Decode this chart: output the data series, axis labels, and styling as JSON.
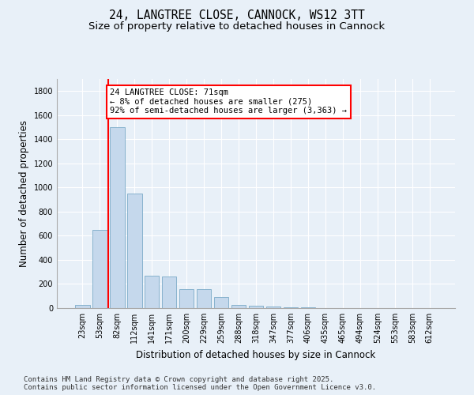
{
  "title1": "24, LANGTREE CLOSE, CANNOCK, WS12 3TT",
  "title2": "Size of property relative to detached houses in Cannock",
  "xlabel": "Distribution of detached houses by size in Cannock",
  "ylabel": "Number of detached properties",
  "categories": [
    "23sqm",
    "53sqm",
    "82sqm",
    "112sqm",
    "141sqm",
    "171sqm",
    "200sqm",
    "229sqm",
    "259sqm",
    "288sqm",
    "318sqm",
    "347sqm",
    "377sqm",
    "406sqm",
    "435sqm",
    "465sqm",
    "494sqm",
    "524sqm",
    "553sqm",
    "583sqm",
    "612sqm"
  ],
  "values": [
    25,
    650,
    1500,
    950,
    270,
    260,
    160,
    155,
    95,
    28,
    22,
    12,
    8,
    5,
    3,
    2,
    1,
    1,
    0,
    0,
    0
  ],
  "bar_color": "#c5d8ec",
  "bar_edge_color": "#7aaac8",
  "vline_x_index": 1.5,
  "annotation_text": "24 LANGTREE CLOSE: 71sqm\n← 8% of detached houses are smaller (275)\n92% of semi-detached houses are larger (3,363) →",
  "annotation_box_color": "white",
  "annotation_box_edge_color": "red",
  "vline_color": "red",
  "ylim": [
    0,
    1900
  ],
  "yticks": [
    0,
    200,
    400,
    600,
    800,
    1000,
    1200,
    1400,
    1600,
    1800
  ],
  "footer1": "Contains HM Land Registry data © Crown copyright and database right 2025.",
  "footer2": "Contains public sector information licensed under the Open Government Licence v3.0.",
  "bg_color": "#e8f0f8",
  "plot_bg_color": "#e8f0f8",
  "title1_fontsize": 10.5,
  "title2_fontsize": 9.5,
  "tick_fontsize": 7,
  "label_fontsize": 8.5,
  "footer_fontsize": 6.5,
  "ann_fontsize": 7.5
}
